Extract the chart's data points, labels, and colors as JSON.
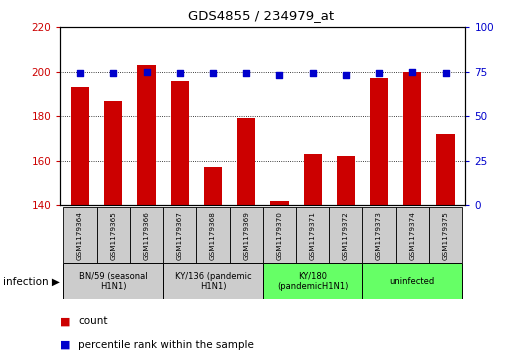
{
  "title": "GDS4855 / 234979_at",
  "samples": [
    "GSM1179364",
    "GSM1179365",
    "GSM1179366",
    "GSM1179367",
    "GSM1179368",
    "GSM1179369",
    "GSM1179370",
    "GSM1179371",
    "GSM1179372",
    "GSM1179373",
    "GSM1179374",
    "GSM1179375"
  ],
  "counts": [
    193,
    187,
    203,
    196,
    157,
    179,
    142,
    163,
    162,
    197,
    200,
    172
  ],
  "percentiles": [
    74,
    74,
    75,
    74,
    74,
    74,
    73,
    74,
    73,
    74,
    75,
    74
  ],
  "ylim_left": [
    140,
    220
  ],
  "ylim_right": [
    0,
    100
  ],
  "yticks_left": [
    140,
    160,
    180,
    200,
    220
  ],
  "yticks_right": [
    0,
    25,
    50,
    75,
    100
  ],
  "groups": [
    {
      "label": "BN/59 (seasonal\nH1N1)",
      "start": 0,
      "end": 3,
      "color": "#cccccc"
    },
    {
      "label": "KY/136 (pandemic\nH1N1)",
      "start": 3,
      "end": 6,
      "color": "#cccccc"
    },
    {
      "label": "KY/180\n(pandemicH1N1)",
      "start": 6,
      "end": 9,
      "color": "#66ff66"
    },
    {
      "label": "uninfected",
      "start": 9,
      "end": 12,
      "color": "#66ff66"
    }
  ],
  "bar_color": "#cc0000",
  "percentile_color": "#0000cc",
  "left_axis_color": "#cc0000",
  "right_axis_color": "#0000cc"
}
